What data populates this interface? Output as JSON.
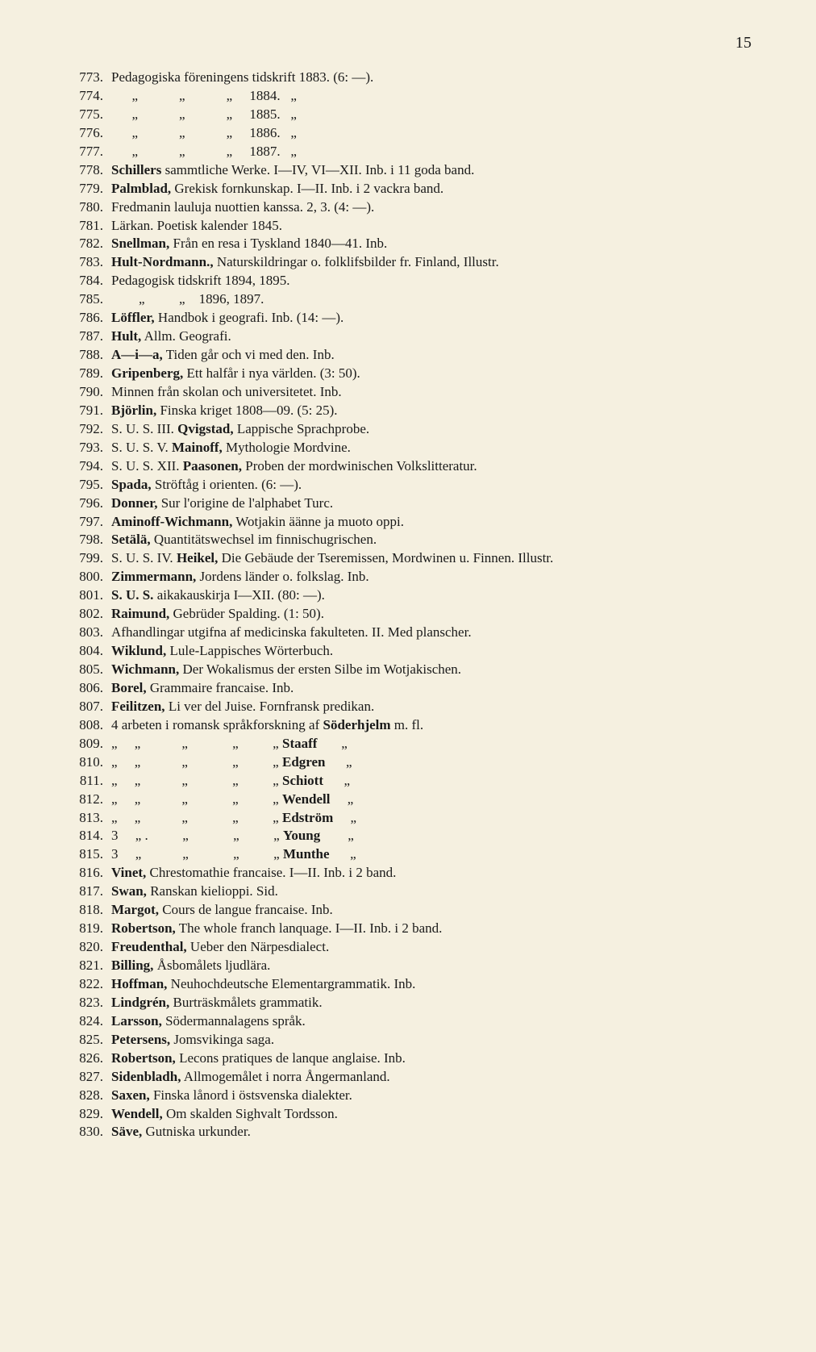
{
  "page_number": "15",
  "entries": [
    {
      "n": "773.",
      "t": "Pedagogiska föreningens tidskrift 1883. (6: —)."
    },
    {
      "n": "774.",
      "t": "      „            „            „     1884.   „"
    },
    {
      "n": "775.",
      "t": "      „            „            „     1885.   „"
    },
    {
      "n": "776.",
      "t": "      „            „            „     1886.   „"
    },
    {
      "n": "777.",
      "t": "      „            „            „     1887.   „"
    },
    {
      "n": "778.",
      "t": "<b>Schillers</b> sammtliche Werke. I—IV, VI—XII. Inb. i 11 goda band."
    },
    {
      "n": "779.",
      "t": "<b>Palmblad,</b> Grekisk fornkunskap. I—II. Inb. i 2 vackra band."
    },
    {
      "n": "780.",
      "t": "Fredmanin lauluja nuottien kanssa. 2, 3. (4: —)."
    },
    {
      "n": "781.",
      "t": "Lärkan. Poetisk kalender 1845."
    },
    {
      "n": "782.",
      "t": "<b>Snellman,</b> Från en resa i Tyskland 1840—41. Inb."
    },
    {
      "n": "783.",
      "t": "<b>Hult-Nordmann.,</b> Naturskildringar o. folklifsbilder fr. Finland, Illustr."
    },
    {
      "n": "784.",
      "t": "Pedagogisk tidskrift 1894, 1895."
    },
    {
      "n": "785.",
      "t": "        „          „    1896, 1897."
    },
    {
      "n": "786.",
      "t": "<b>Löffler,</b> Handbok i geografi. Inb. (14: —)."
    },
    {
      "n": "787.",
      "t": "<b>Hult,</b> Allm. Geografi."
    },
    {
      "n": "788.",
      "t": "<b>A—i—a,</b> Tiden går och vi med den. Inb."
    },
    {
      "n": "789.",
      "t": "<b>Gripenberg,</b> Ett halfår i nya världen. (3: 50)."
    },
    {
      "n": "790.",
      "t": "Minnen från skolan och universitetet. Inb."
    },
    {
      "n": "791.",
      "t": "<b>Björlin,</b> Finska kriget 1808—09. (5: 25)."
    },
    {
      "n": "792.",
      "t": "S. U. S. III. <b>Qvigstad,</b> Lappische Sprachprobe."
    },
    {
      "n": "793.",
      "t": "S. U. S. V. <b>Mainoff,</b> Mythologie Mordvine."
    },
    {
      "n": "794.",
      "t": "S. U. S. XII. <b>Paasonen,</b> Proben der mordwinischen Volkslitteratur."
    },
    {
      "n": "795.",
      "t": "<b>Spada,</b> Ströftåg i orienten. (6: —)."
    },
    {
      "n": "796.",
      "t": "<b>Donner,</b> Sur l'origine de l'alphabet Turc."
    },
    {
      "n": "797.",
      "t": "<b>Aminoff-Wichmann,</b> Wotjakin äänne ja muoto oppi."
    },
    {
      "n": "798.",
      "t": "<b>Setälä,</b> Quantitätswechsel im finnischugrischen."
    },
    {
      "n": "799.",
      "t": "S. U. S. IV. <b>Heikel,</b> Die Gebäude der Tseremissen, Mordwinen u. Finnen. Illustr."
    },
    {
      "n": "800.",
      "t": "<b>Zimmermann,</b> Jordens länder o. folkslag. Inb."
    },
    {
      "n": "801.",
      "t": "<b>S. U. S.</b> aikakauskirja I—XII. (80: —)."
    },
    {
      "n": "802.",
      "t": "<b>Raimund,</b> Gebrüder Spalding. (1: 50)."
    },
    {
      "n": "803.",
      "t": "Afhandlingar utgifna af medicinska fakulteten. II. Med planscher."
    },
    {
      "n": "804.",
      "t": "<b>Wiklund,</b> Lule-Lappisches Wörterbuch."
    },
    {
      "n": "805.",
      "t": "<b>Wichmann,</b> Der Wokalismus der ersten Silbe im Wotjakischen."
    },
    {
      "n": "806.",
      "t": "<b>Borel,</b> Grammaire francaise. Inb."
    },
    {
      "n": "807.",
      "t": "<b>Feilitzen,</b> Li ver del Juise. Fornfransk predikan."
    },
    {
      "n": "808.",
      "t": "4 arbeten i romansk språkforskning af <b>Söderhjelm</b> m. fl."
    },
    {
      "n": "809.",
      "t": "„     „            „             „          „ <b>Staaff</b>       „"
    },
    {
      "n": "810.",
      "t": "„     „            „             „          „ <b>Edgren</b>      „"
    },
    {
      "n": "811.",
      "t": "„     „            „             „          „ <b>Schiott</b>      „"
    },
    {
      "n": "812.",
      "t": "„     „            „             „          „ <b>Wendell</b>     „"
    },
    {
      "n": "813.",
      "t": "„     „            „             „          „ <b>Edström</b>     „"
    },
    {
      "n": "814.",
      "t": "3     „ .          „             „          „ <b>Young</b>        „"
    },
    {
      "n": "815.",
      "t": "3     „            „             „          „ <b>Munthe</b>      „"
    },
    {
      "n": "816.",
      "t": "<b>Vinet,</b> Chrestomathie francaise. I—II. Inb. i 2 band."
    },
    {
      "n": "817.",
      "t": "<b>Swan,</b> Ranskan kielioppi. Sid."
    },
    {
      "n": "818.",
      "t": "<b>Margot,</b> Cours de langue francaise. Inb."
    },
    {
      "n": "819.",
      "t": "<b>Robertson,</b> The whole franch lanquage. I—II. Inb. i 2 band."
    },
    {
      "n": "820.",
      "t": "<b>Freudenthal,</b> Ueber den Närpesdialect."
    },
    {
      "n": "821.",
      "t": "<b>Billing,</b> Åsbomålets ljudlära."
    },
    {
      "n": "822.",
      "t": "<b>Hoffman,</b> Neuhochdeutsche Elementargrammatik. Inb."
    },
    {
      "n": "823.",
      "t": "<b>Lindgrén,</b> Burträskmålets grammatik."
    },
    {
      "n": "824.",
      "t": "<b>Larsson,</b> Södermannalagens språk."
    },
    {
      "n": "825.",
      "t": "<b>Petersens,</b> Jomsvikinga saga."
    },
    {
      "n": "826.",
      "t": "<b>Robertson,</b> Lecons pratiques de lanque anglaise. Inb."
    },
    {
      "n": "827.",
      "t": "<b>Sidenbladh,</b> Allmogemålet i norra Ångermanland."
    },
    {
      "n": "828.",
      "t": "<b>Saxen,</b> Finska lånord i östsvenska dialekter."
    },
    {
      "n": "829.",
      "t": "<b>Wendell,</b> Om skalden Sighvalt Tordsson."
    },
    {
      "n": "830.",
      "t": "<b>Säve,</b> Gutniska urkunder."
    }
  ]
}
